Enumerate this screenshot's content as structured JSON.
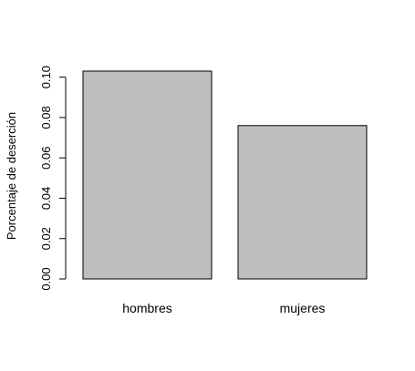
{
  "chart_data": {
    "type": "bar",
    "categories": [
      "hombres",
      "mujeres"
    ],
    "values": [
      0.103,
      0.076
    ],
    "title": "",
    "xlabel": "",
    "ylabel": "Porcentaje de deserción",
    "ylim": [
      0,
      0.103
    ],
    "yticks": [
      "0.00",
      "0.02",
      "0.04",
      "0.06",
      "0.08",
      "0.10"
    ],
    "ytick_values": [
      0,
      0.02,
      0.04,
      0.06,
      0.08,
      0.1
    ],
    "grid": false,
    "legend": "none",
    "bar_color": "#bebebe",
    "bar_border_color": "#000000"
  }
}
